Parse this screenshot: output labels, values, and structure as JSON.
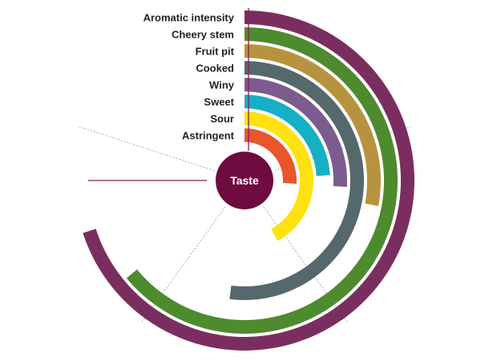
{
  "chart_data": {
    "type": "radial-bar",
    "center_label": "Taste",
    "center_color": "#6e0b3f",
    "scale_max": 5,
    "series": [
      {
        "name": "Aromatic intensity",
        "value": 3.5,
        "color": "#7a2e5f"
      },
      {
        "name": "Cheery stem",
        "value": 3.2,
        "color": "#4e8a2e"
      },
      {
        "name": "Fruit pit",
        "value": 1.4,
        "color": "#b8933f"
      },
      {
        "name": "Cooked",
        "value": 2.6,
        "color": "#55686b"
      },
      {
        "name": "Winy",
        "value": 1.3,
        "color": "#7c5b8f"
      },
      {
        "name": "Sweet",
        "value": 1.2,
        "color": "#15b0c5"
      },
      {
        "name": "Sour",
        "value": 2.1,
        "color": "#ffe20f"
      },
      {
        "name": "Astringent",
        "value": 1.3,
        "color": "#e8562a"
      }
    ]
  }
}
